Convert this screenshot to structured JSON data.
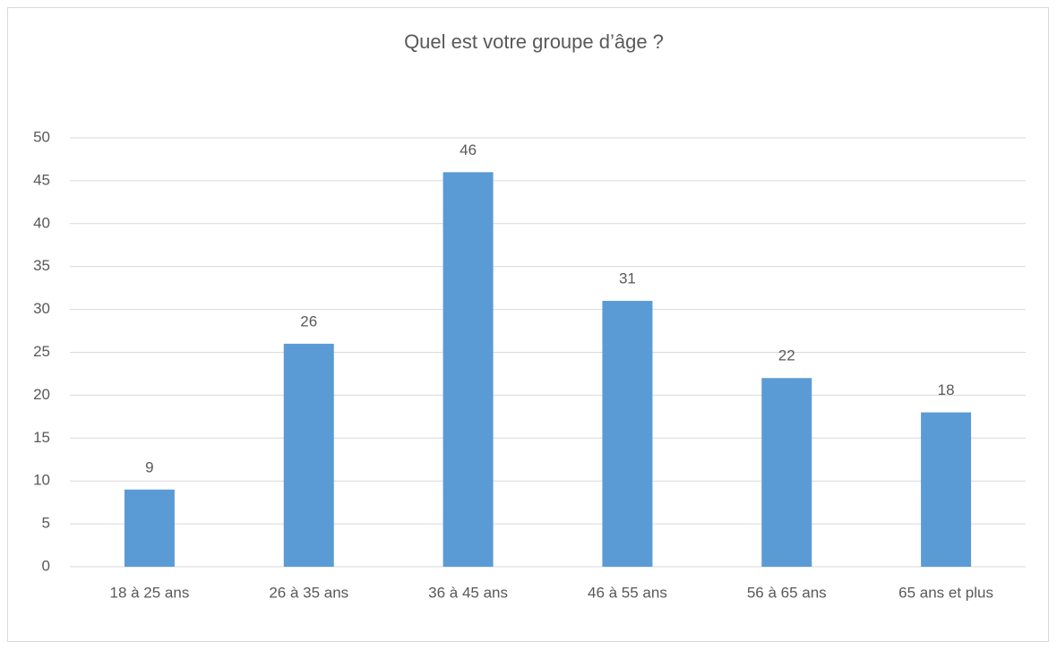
{
  "chart_data": {
    "type": "bar",
    "title": "Quel est votre groupe d’âge ?",
    "categories": [
      "18 à 25 ans",
      "26 à 35 ans",
      "36 à 45 ans",
      "46 à 55 ans",
      "56 à 65 ans",
      "65 ans et plus"
    ],
    "values": [
      9,
      26,
      46,
      31,
      22,
      18
    ],
    "color": "#5b9bd5",
    "ylim": [
      0,
      50
    ],
    "yticks": [
      0,
      5,
      10,
      15,
      20,
      25,
      30,
      35,
      40,
      45,
      50
    ],
    "grid": true
  }
}
